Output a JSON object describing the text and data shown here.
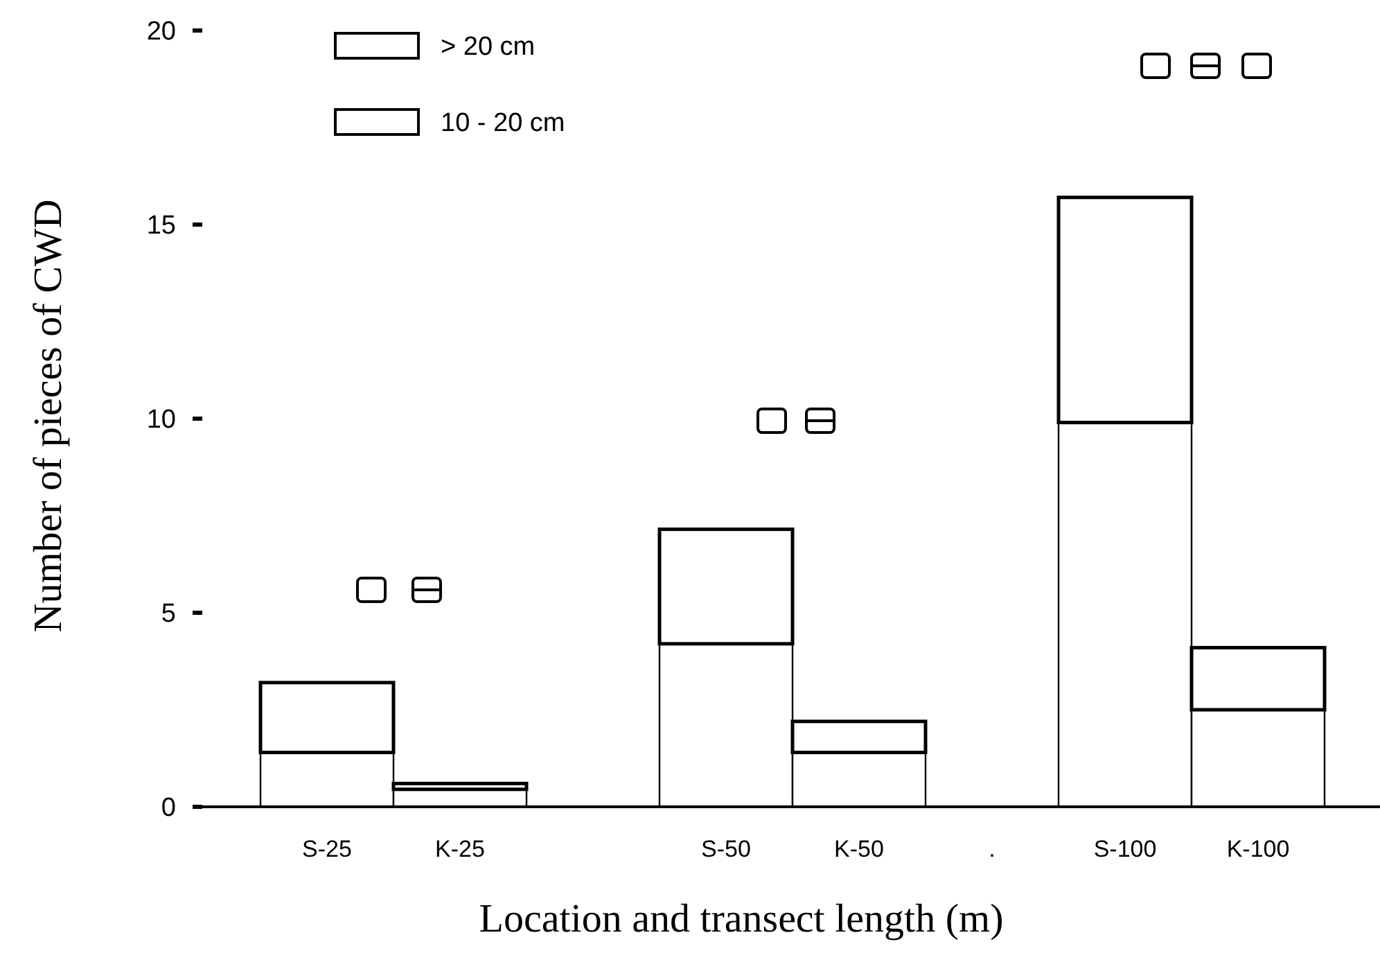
{
  "chart_data": {
    "type": "bar",
    "stacked": true,
    "xlabel": "Location and transect length (m)",
    "ylabel": "Number of pieces of CWD",
    "categories": [
      "S-25",
      "K-25",
      null,
      "S-50",
      "K-50",
      ".",
      "S-100",
      "K-100"
    ],
    "series": [
      {
        "name": "10 - 20 cm",
        "color": "#ffffff",
        "values": [
          1.4,
          0.45,
          null,
          4.2,
          1.4,
          null,
          9.9,
          2.5
        ]
      },
      {
        "name": "> 20 cm",
        "color": "#ffffff",
        "values": [
          1.8,
          0.15,
          null,
          2.95,
          0.8,
          null,
          5.8,
          1.6
        ]
      }
    ],
    "ylim": [
      0,
      20
    ],
    "yticks": [
      0,
      5,
      10,
      15,
      20
    ],
    "legend": "top left"
  }
}
